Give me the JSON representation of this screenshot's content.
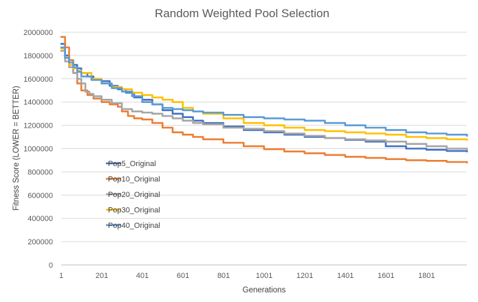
{
  "chart_data": {
    "type": "line",
    "title": "Random Weighted Pool Selection",
    "xlabel": "Generations",
    "ylabel": "Fitness Score (LOWER = BETTER)",
    "xlim": [
      1,
      2000
    ],
    "ylim": [
      0,
      2000000
    ],
    "x_ticks": [
      "1",
      "201",
      "401",
      "601",
      "801",
      "1001",
      "1201",
      "1401",
      "1601",
      "1801"
    ],
    "y_ticks": [
      "0",
      "200000",
      "400000",
      "600000",
      "800000",
      "1000000",
      "1200000",
      "1400000",
      "1600000",
      "1800000",
      "2000000"
    ],
    "grid": "horizontal",
    "legend_position": "inside-left",
    "series": [
      {
        "name": "Pop5_Original",
        "color": "#4472C4",
        "points": [
          [
            1,
            1900000
          ],
          [
            20,
            1800000
          ],
          [
            40,
            1760000
          ],
          [
            60,
            1720000
          ],
          [
            80,
            1690000
          ],
          [
            100,
            1650000
          ],
          [
            130,
            1620000
          ],
          [
            160,
            1600000
          ],
          [
            200,
            1580000
          ],
          [
            240,
            1540000
          ],
          [
            280,
            1510000
          ],
          [
            320,
            1480000
          ],
          [
            360,
            1440000
          ],
          [
            400,
            1420000
          ],
          [
            450,
            1380000
          ],
          [
            500,
            1330000
          ],
          [
            550,
            1300000
          ],
          [
            600,
            1270000
          ],
          [
            650,
            1240000
          ],
          [
            700,
            1220000
          ],
          [
            800,
            1190000
          ],
          [
            900,
            1160000
          ],
          [
            1000,
            1140000
          ],
          [
            1100,
            1120000
          ],
          [
            1200,
            1100000
          ],
          [
            1300,
            1090000
          ],
          [
            1400,
            1075000
          ],
          [
            1500,
            1060000
          ],
          [
            1600,
            1020000
          ],
          [
            1700,
            1000000
          ],
          [
            1800,
            990000
          ],
          [
            1900,
            980000
          ],
          [
            2000,
            975000
          ]
        ]
      },
      {
        "name": "Pop10_Original",
        "color": "#ED7D31",
        "points": [
          [
            1,
            1960000
          ],
          [
            20,
            1870000
          ],
          [
            40,
            1760000
          ],
          [
            60,
            1650000
          ],
          [
            80,
            1560000
          ],
          [
            100,
            1500000
          ],
          [
            130,
            1460000
          ],
          [
            160,
            1430000
          ],
          [
            200,
            1400000
          ],
          [
            240,
            1380000
          ],
          [
            280,
            1360000
          ],
          [
            300,
            1320000
          ],
          [
            330,
            1280000
          ],
          [
            360,
            1260000
          ],
          [
            400,
            1250000
          ],
          [
            450,
            1220000
          ],
          [
            500,
            1180000
          ],
          [
            550,
            1140000
          ],
          [
            600,
            1120000
          ],
          [
            650,
            1100000
          ],
          [
            700,
            1080000
          ],
          [
            800,
            1050000
          ],
          [
            900,
            1020000
          ],
          [
            1000,
            995000
          ],
          [
            1100,
            975000
          ],
          [
            1200,
            960000
          ],
          [
            1300,
            945000
          ],
          [
            1400,
            930000
          ],
          [
            1500,
            920000
          ],
          [
            1600,
            910000
          ],
          [
            1700,
            900000
          ],
          [
            1800,
            895000
          ],
          [
            1900,
            885000
          ],
          [
            2000,
            880000
          ]
        ]
      },
      {
        "name": "Pop20_Original",
        "color": "#A5A5A5",
        "points": [
          [
            1,
            1840000
          ],
          [
            20,
            1750000
          ],
          [
            40,
            1700000
          ],
          [
            60,
            1650000
          ],
          [
            80,
            1600000
          ],
          [
            100,
            1560000
          ],
          [
            120,
            1490000
          ],
          [
            140,
            1470000
          ],
          [
            160,
            1450000
          ],
          [
            200,
            1420000
          ],
          [
            250,
            1390000
          ],
          [
            300,
            1340000
          ],
          [
            350,
            1320000
          ],
          [
            400,
            1310000
          ],
          [
            450,
            1300000
          ],
          [
            500,
            1280000
          ],
          [
            550,
            1260000
          ],
          [
            600,
            1240000
          ],
          [
            650,
            1220000
          ],
          [
            700,
            1210000
          ],
          [
            800,
            1180000
          ],
          [
            900,
            1170000
          ],
          [
            1000,
            1150000
          ],
          [
            1100,
            1130000
          ],
          [
            1200,
            1110000
          ],
          [
            1300,
            1090000
          ],
          [
            1400,
            1080000
          ],
          [
            1500,
            1070000
          ],
          [
            1600,
            1060000
          ],
          [
            1700,
            1040000
          ],
          [
            1800,
            1020000
          ],
          [
            1900,
            1000000
          ],
          [
            2000,
            990000
          ]
        ]
      },
      {
        "name": "Pop30_Original",
        "color": "#FFC000",
        "points": [
          [
            1,
            1860000
          ],
          [
            20,
            1780000
          ],
          [
            40,
            1720000
          ],
          [
            60,
            1690000
          ],
          [
            80,
            1670000
          ],
          [
            100,
            1650000
          ],
          [
            150,
            1600000
          ],
          [
            200,
            1560000
          ],
          [
            250,
            1530000
          ],
          [
            300,
            1510000
          ],
          [
            350,
            1480000
          ],
          [
            400,
            1460000
          ],
          [
            450,
            1440000
          ],
          [
            500,
            1420000
          ],
          [
            550,
            1400000
          ],
          [
            600,
            1350000
          ],
          [
            650,
            1320000
          ],
          [
            700,
            1300000
          ],
          [
            800,
            1260000
          ],
          [
            900,
            1220000
          ],
          [
            1000,
            1200000
          ],
          [
            1100,
            1180000
          ],
          [
            1200,
            1160000
          ],
          [
            1300,
            1150000
          ],
          [
            1400,
            1140000
          ],
          [
            1500,
            1130000
          ],
          [
            1600,
            1120000
          ],
          [
            1700,
            1100000
          ],
          [
            1800,
            1090000
          ],
          [
            1900,
            1080000
          ],
          [
            2000,
            1075000
          ]
        ]
      },
      {
        "name": "Pop40_Original",
        "color": "#5B9BD5",
        "points": [
          [
            1,
            1870000
          ],
          [
            20,
            1780000
          ],
          [
            40,
            1740000
          ],
          [
            60,
            1700000
          ],
          [
            80,
            1660000
          ],
          [
            100,
            1620000
          ],
          [
            150,
            1590000
          ],
          [
            200,
            1560000
          ],
          [
            250,
            1520000
          ],
          [
            300,
            1490000
          ],
          [
            350,
            1450000
          ],
          [
            400,
            1400000
          ],
          [
            450,
            1380000
          ],
          [
            500,
            1350000
          ],
          [
            550,
            1340000
          ],
          [
            600,
            1330000
          ],
          [
            650,
            1320000
          ],
          [
            700,
            1310000
          ],
          [
            800,
            1290000
          ],
          [
            900,
            1270000
          ],
          [
            1000,
            1260000
          ],
          [
            1100,
            1250000
          ],
          [
            1200,
            1240000
          ],
          [
            1300,
            1220000
          ],
          [
            1400,
            1200000
          ],
          [
            1500,
            1180000
          ],
          [
            1600,
            1160000
          ],
          [
            1700,
            1140000
          ],
          [
            1800,
            1130000
          ],
          [
            1900,
            1120000
          ],
          [
            2000,
            1110000
          ]
        ]
      }
    ]
  }
}
